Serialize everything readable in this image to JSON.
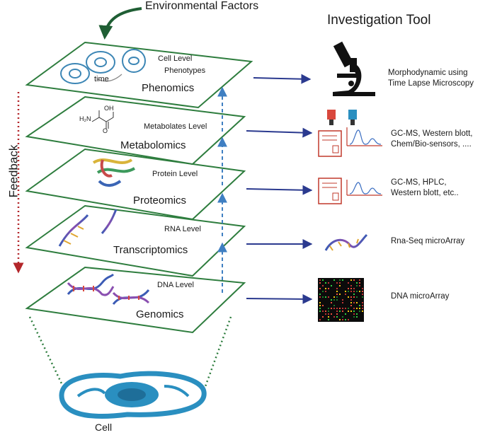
{
  "header": {
    "environmental_factors": "Environmental Factors",
    "investigation_tool": "Investigation Tool"
  },
  "side": {
    "feedback": "Feedback"
  },
  "layers": [
    {
      "level": "Cell Level",
      "level2": "Phenotypes",
      "omic": "Phenomics",
      "tool": "Morphodynamic using Time Lapse Microscopy",
      "icon": "microscope-icon",
      "time_label": "time"
    },
    {
      "level": "Metabolates Level",
      "omic": "Metabolomics",
      "tool": "GC-MS, Western blott, Chem/Bio-sensors, ....",
      "icon": "sensor-analyzer-icon"
    },
    {
      "level": "Protein Level",
      "omic": "Proteomics",
      "tool": "GC-MS, HPLC, Western blott, etc..",
      "icon": "analyzer-icon"
    },
    {
      "level": "RNA Level",
      "omic": "Transcriptomics",
      "tool": "Rna-Seq microArray",
      "icon": "rna-strand-icon"
    },
    {
      "level": "DNA Level",
      "omic": "Genomics",
      "tool": "DNA microArray",
      "icon": "microarray-icon"
    }
  ],
  "molecule": {
    "oh": "OH",
    "h2n": "H₂N",
    "o": "O"
  },
  "cell": {
    "label": "Cell"
  },
  "colors": {
    "plane": "#2e7d3e",
    "arrow": "#2b3a8f",
    "feedback": "#b3262a",
    "dashed_up": "#3f7fc2",
    "cell": "#2a8fc0",
    "env_arrow": "#1f5e34"
  }
}
